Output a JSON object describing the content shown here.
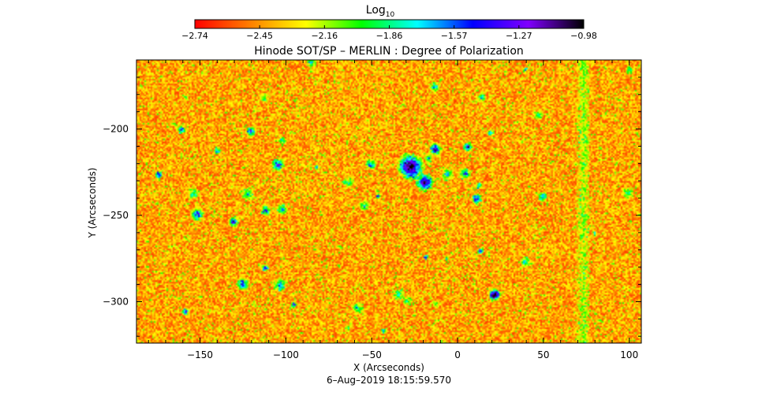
{
  "chart_data": {
    "type": "heatmap",
    "title": "Hinode SOT/SP – MERLIN : Degree of Polarization",
    "colorbar": {
      "label_base": "Log",
      "label_sub": "10",
      "tick_labels": [
        "−2.74",
        "−2.45",
        "−2.16",
        "−1.86",
        "−1.57",
        "−1.27",
        "−0.98"
      ],
      "vmin": -2.74,
      "vmax": -0.98,
      "colormap_stops": [
        "#ff0000",
        "#ff7f00",
        "#ffff00",
        "#00ff00",
        "#00ffff",
        "#0000ff",
        "#8000ff",
        "#000000"
      ]
    },
    "xlabel": "X (Arcseconds)",
    "ylabel": "Y (Arcseconds)",
    "xlim": [
      -187,
      107
    ],
    "ylim": [
      -324,
      -160
    ],
    "xticks": [
      -150,
      -100,
      -50,
      0,
      50,
      100
    ],
    "xtick_labels": [
      "−150",
      "−100",
      "−50",
      "0",
      "50",
      "100"
    ],
    "yticks": [
      -200,
      -250,
      -300
    ],
    "ytick_labels": [
      "−200",
      "−250",
      "−300"
    ],
    "background_level": -2.5,
    "features": [
      {
        "name": "active-region",
        "x": -25,
        "y": -225,
        "level": -1.0
      },
      {
        "name": "vertical-stripe",
        "x": 73,
        "level": -2.2
      }
    ],
    "timestamp": "6–Aug–2019 18:15:59.570"
  }
}
